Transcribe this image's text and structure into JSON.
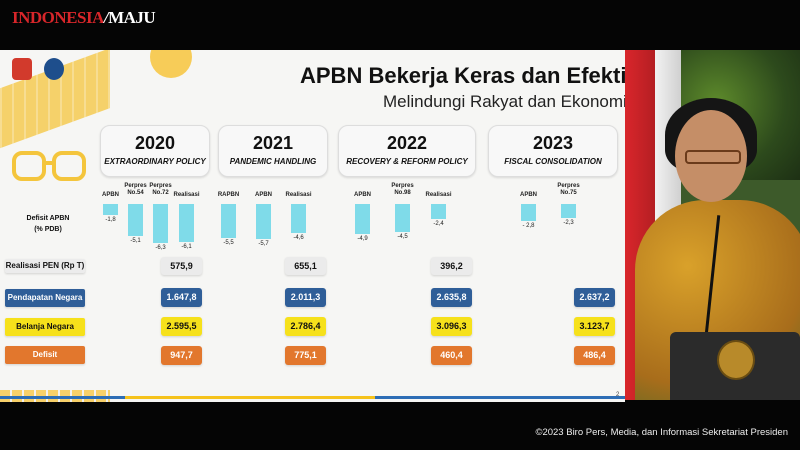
{
  "broadcast": {
    "logo_part1": "INDONESIA",
    "logo_part2": "MAJU",
    "credit": "©2023 Biro Pers, Media, dan Informasi Sekretariat Presiden"
  },
  "slide": {
    "title": "APBN Bekerja Keras dan Efektif",
    "subtitle": "Melindungi Rakyat dan Ekonomi",
    "page_number": "2",
    "row_label_deficit_line1": "Defisit APBN",
    "row_label_deficit_line2": "(% PDB)",
    "rows": {
      "pen": "Realisasi PEN (Rp T)",
      "pendapatan": "Pendapatan Negara",
      "belanja": "Belanja Negara",
      "defisit": "Defisit"
    },
    "years": [
      {
        "year": "2020",
        "policy": "EXTRAORDINARY POLICY",
        "deficit_bars": [
          {
            "label": "APBN",
            "value": -1.8,
            "value_text": "-1,8"
          },
          {
            "label": "Perpres No.54",
            "value": -5.1,
            "value_text": "-5,1"
          },
          {
            "label": "Perpres No.72",
            "value": -6.3,
            "value_text": "-6,3"
          },
          {
            "label": "Realisasi",
            "value": -6.1,
            "value_text": "-6,1"
          }
        ],
        "pen": "575,9",
        "pendapatan": "1.647,8",
        "belanja": "2.595,5",
        "defisit": "947,7"
      },
      {
        "year": "2021",
        "policy": "PANDEMIC HANDLING",
        "deficit_bars": [
          {
            "label": "RAPBN",
            "value": -5.5,
            "value_text": "-5,5"
          },
          {
            "label": "APBN",
            "value": -5.7,
            "value_text": "-5,7"
          },
          {
            "label": "Realisasi",
            "value": -4.6,
            "value_text": "-4,6"
          }
        ],
        "pen": "655,1",
        "pendapatan": "2.011,3",
        "belanja": "2.786,4",
        "defisit": "775,1"
      },
      {
        "year": "2022",
        "policy": "RECOVERY & REFORM POLICY",
        "deficit_bars": [
          {
            "label": "APBN",
            "value": -4.9,
            "value_text": "-4,9"
          },
          {
            "label": "Perpres No.98",
            "value": -4.5,
            "value_text": "-4,5"
          },
          {
            "label": "Realisasi",
            "value": -2.4,
            "value_text": "-2,4"
          }
        ],
        "pen": "396,2",
        "pendapatan": "2.635,8",
        "belanja": "3.096,3",
        "defisit": "460,4"
      },
      {
        "year": "2023",
        "policy": "FISCAL CONSOLIDATION",
        "deficit_bars": [
          {
            "label": "APBN",
            "value": -2.8,
            "value_text": "- 2,8"
          },
          {
            "label": "Perpres No.75",
            "value": -2.3,
            "value_text": "-2,3"
          }
        ],
        "pen": "",
        "pendapatan": "2.637,2",
        "belanja": "3.123,7",
        "defisit": "486,4"
      }
    ]
  },
  "colors": {
    "bar": "#7fdbe9",
    "pendapatan": "#2f5e98",
    "belanja": "#f6e11b",
    "defisit": "#e2772d"
  }
}
